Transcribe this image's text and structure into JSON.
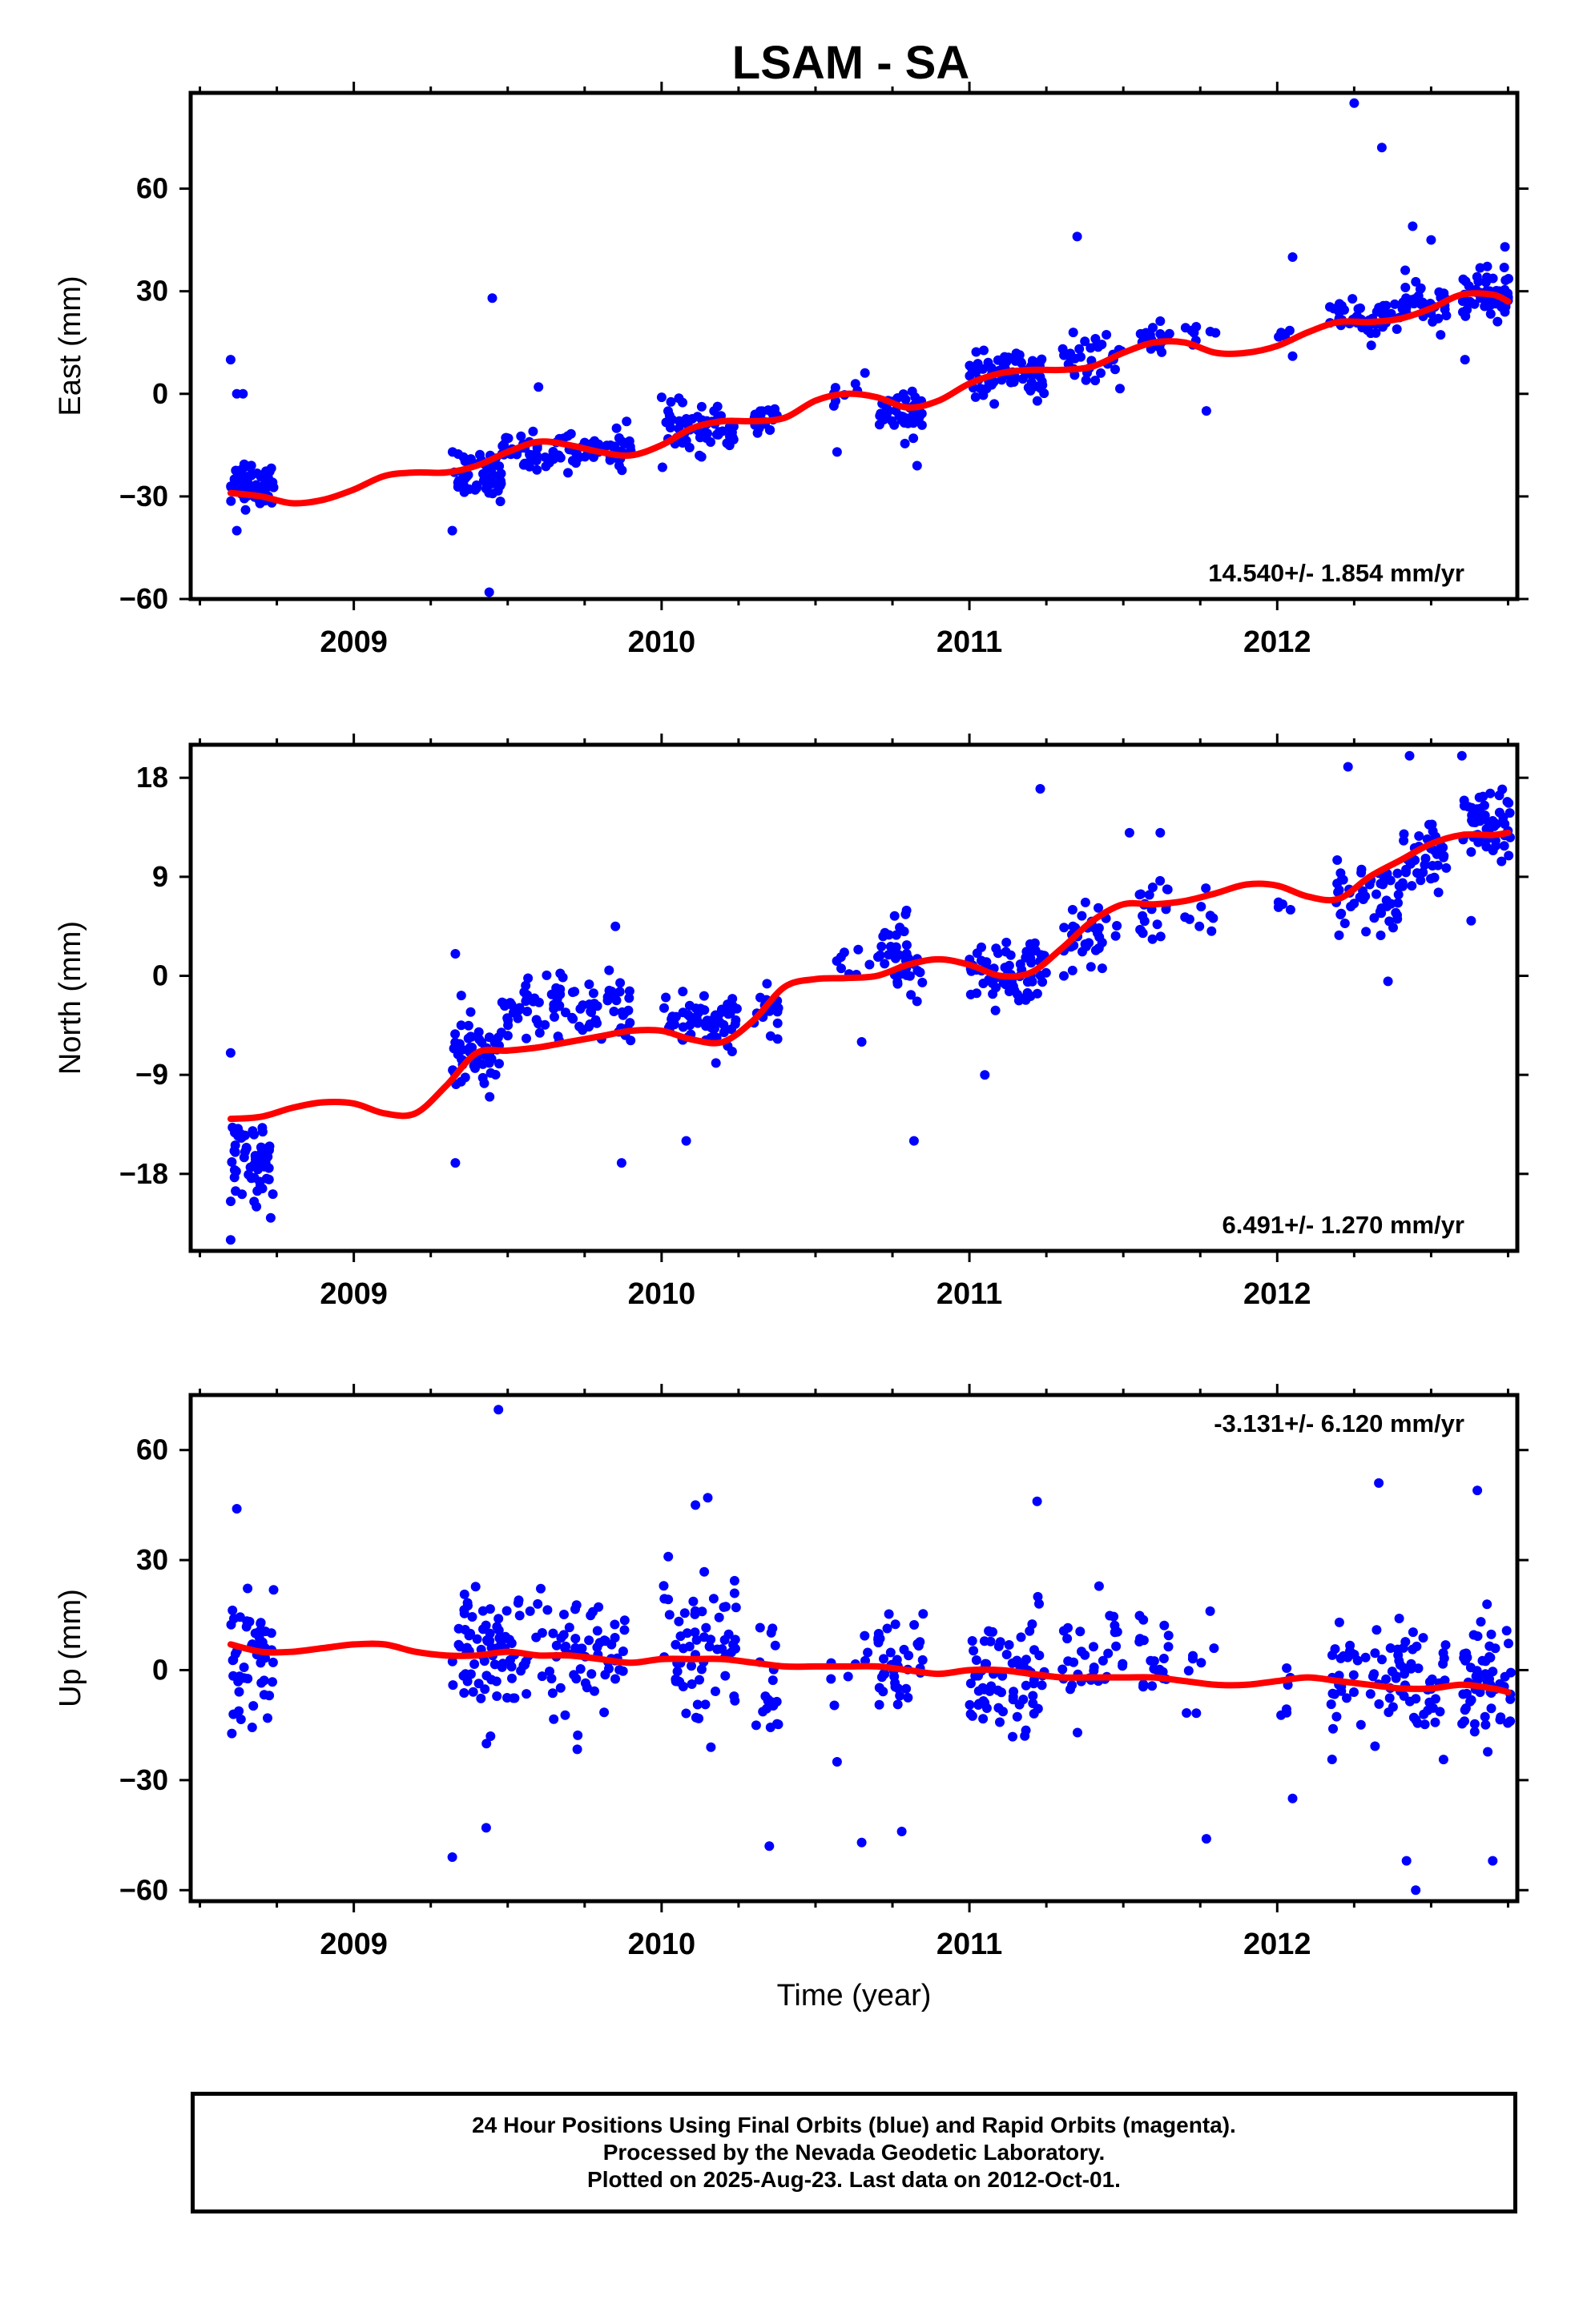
{
  "title": "LSAM - SA",
  "colors": {
    "points": "#0000ff",
    "fit": "#ff0000",
    "frame": "#000000"
  },
  "chart_data": [
    {
      "type": "scatter",
      "id": "east",
      "ylabel": "East (mm)",
      "xlabel": "",
      "xlim": [
        2008.47,
        2012.78
      ],
      "ylim": [
        -60,
        88
      ],
      "xticks": [
        2009,
        2010,
        2011,
        2012
      ],
      "xtick_labels": [
        "2009",
        "2010",
        "2011",
        "2012"
      ],
      "yticks": [
        -60,
        -30,
        0,
        30,
        60
      ],
      "ytick_labels": [
        "−60",
        "−30",
        "0",
        "30",
        "60"
      ],
      "rate_label": "14.540+/- 1.854 mm/yr",
      "rate_position": "bottom-right",
      "fit_curve": {
        "x": [
          2008.6,
          2008.7,
          2008.8,
          2008.9,
          2009.0,
          2009.1,
          2009.2,
          2009.3,
          2009.4,
          2009.5,
          2009.6,
          2009.7,
          2009.8,
          2009.9,
          2010.0,
          2010.1,
          2010.2,
          2010.3,
          2010.4,
          2010.5,
          2010.6,
          2010.7,
          2010.8,
          2010.9,
          2011.0,
          2011.1,
          2011.2,
          2011.3,
          2011.4,
          2011.5,
          2011.6,
          2011.7,
          2011.8,
          2011.9,
          2012.0,
          2012.1,
          2012.2,
          2012.3,
          2012.4,
          2012.5,
          2012.6,
          2012.7,
          2012.75
        ],
        "y": [
          -29,
          -30,
          -32,
          -31,
          -28,
          -24,
          -23,
          -23,
          -21,
          -17,
          -14,
          -15,
          -17,
          -18,
          -15,
          -10,
          -8,
          -8,
          -7,
          -2,
          0,
          -1,
          -4,
          -2,
          3,
          6,
          7,
          7,
          8,
          12,
          15,
          15,
          12,
          12,
          14,
          18,
          21,
          21,
          22,
          25,
          29,
          29,
          27
        ]
      },
      "point_clusters": [
        {
          "x": [
            2008.6,
            2008.74
          ],
          "y_center": -26,
          "spread": 6,
          "count": 60
        },
        {
          "x": [
            2009.32,
            2009.48
          ],
          "y_center": -24,
          "spread": 6,
          "count": 55
        },
        {
          "x": [
            2009.48,
            2009.72
          ],
          "y_center": -17,
          "spread": 5,
          "count": 50
        },
        {
          "x": [
            2009.72,
            2009.9
          ],
          "y_center": -16,
          "spread": 5,
          "count": 40
        },
        {
          "x": [
            2010.0,
            2010.25
          ],
          "y_center": -10,
          "spread": 6,
          "count": 65
        },
        {
          "x": [
            2010.3,
            2010.38
          ],
          "y_center": -8,
          "spread": 5,
          "count": 20
        },
        {
          "x": [
            2010.55,
            2010.68
          ],
          "y_center": 0,
          "spread": 4,
          "count": 8
        },
        {
          "x": [
            2010.7,
            2010.85
          ],
          "y_center": -5,
          "spread": 6,
          "count": 40
        },
        {
          "x": [
            2011.0,
            2011.25
          ],
          "y_center": 5,
          "spread": 6,
          "count": 75
        },
        {
          "x": [
            2011.3,
            2011.5
          ],
          "y_center": 10,
          "spread": 6,
          "count": 35
        },
        {
          "x": [
            2011.55,
            2011.65
          ],
          "y_center": 16,
          "spread": 5,
          "count": 20
        },
        {
          "x": [
            2011.7,
            2011.8
          ],
          "y_center": 18,
          "spread": 6,
          "count": 8
        },
        {
          "x": [
            2012.0,
            2012.05
          ],
          "y_center": 17,
          "spread": 5,
          "count": 4
        },
        {
          "x": [
            2012.17,
            2012.4
          ],
          "y_center": 22,
          "spread": 5,
          "count": 50
        },
        {
          "x": [
            2012.4,
            2012.55
          ],
          "y_center": 26,
          "spread": 6,
          "count": 40
        },
        {
          "x": [
            2012.6,
            2012.76
          ],
          "y_center": 29,
          "spread": 6,
          "count": 60
        }
      ],
      "outliers": [
        {
          "x": 2008.6,
          "y": 10
        },
        {
          "x": 2008.62,
          "y": 0
        },
        {
          "x": 2008.64,
          "y": 0
        },
        {
          "x": 2008.62,
          "y": -40
        },
        {
          "x": 2009.45,
          "y": 28
        },
        {
          "x": 2009.44,
          "y": -58
        },
        {
          "x": 2009.32,
          "y": -40
        },
        {
          "x": 2009.6,
          "y": 2
        },
        {
          "x": 2010.57,
          "y": -17
        },
        {
          "x": 2010.83,
          "y": -21
        },
        {
          "x": 2011.35,
          "y": 46
        },
        {
          "x": 2011.77,
          "y": -5
        },
        {
          "x": 2012.05,
          "y": 40
        },
        {
          "x": 2012.05,
          "y": 11
        },
        {
          "x": 2012.25,
          "y": 85
        },
        {
          "x": 2012.34,
          "y": 72
        },
        {
          "x": 2012.44,
          "y": 49
        },
        {
          "x": 2012.5,
          "y": 45
        },
        {
          "x": 2012.61,
          "y": 10
        },
        {
          "x": 2012.74,
          "y": 43
        }
      ]
    },
    {
      "type": "scatter",
      "id": "north",
      "ylabel": "North (mm)",
      "xlabel": "",
      "xlim": [
        2008.47,
        2012.78
      ],
      "ylim": [
        -25,
        21
      ],
      "xticks": [
        2009,
        2010,
        2011,
        2012
      ],
      "xtick_labels": [
        "2009",
        "2010",
        "2011",
        "2012"
      ],
      "yticks": [
        -18,
        -9,
        0,
        9,
        18
      ],
      "ytick_labels": [
        "−18",
        "−9",
        "0",
        "9",
        "18"
      ],
      "rate_label": "6.491+/- 1.270 mm/yr",
      "rate_position": "bottom-right",
      "fit_curve": {
        "x": [
          2008.6,
          2008.7,
          2008.8,
          2008.9,
          2009.0,
          2009.1,
          2009.2,
          2009.3,
          2009.4,
          2009.5,
          2009.6,
          2009.7,
          2009.8,
          2009.9,
          2010.0,
          2010.1,
          2010.2,
          2010.3,
          2010.4,
          2010.5,
          2010.6,
          2010.7,
          2010.8,
          2010.9,
          2011.0,
          2011.1,
          2011.2,
          2011.3,
          2011.4,
          2011.5,
          2011.6,
          2011.7,
          2011.8,
          2011.9,
          2012.0,
          2012.1,
          2012.2,
          2012.3,
          2012.4,
          2012.5,
          2012.6,
          2012.7,
          2012.75
        ],
        "y": [
          -13,
          -12.8,
          -12,
          -11.5,
          -11.6,
          -12.5,
          -12.5,
          -10,
          -7,
          -6.8,
          -6.5,
          -6,
          -5.5,
          -5,
          -5,
          -5.8,
          -6,
          -4,
          -1,
          -0.3,
          -0.2,
          0,
          1,
          1.5,
          1,
          0,
          0.3,
          2.5,
          5,
          6.5,
          6.5,
          6.8,
          7.5,
          8.3,
          8.2,
          7.2,
          7,
          9,
          10.5,
          12,
          12.8,
          12.8,
          13
        ]
      },
      "point_clusters": [
        {
          "x": [
            2008.6,
            2008.74
          ],
          "y_center": -17,
          "spread": 3.5,
          "count": 60
        },
        {
          "x": [
            2009.32,
            2009.48
          ],
          "y_center": -7,
          "spread": 3,
          "count": 55
        },
        {
          "x": [
            2009.48,
            2009.72
          ],
          "y_center": -3,
          "spread": 2.5,
          "count": 50
        },
        {
          "x": [
            2009.72,
            2009.9
          ],
          "y_center": -3,
          "spread": 2.5,
          "count": 40
        },
        {
          "x": [
            2010.0,
            2010.25
          ],
          "y_center": -4,
          "spread": 2.5,
          "count": 65
        },
        {
          "x": [
            2010.3,
            2010.38
          ],
          "y_center": -3,
          "spread": 2.5,
          "count": 20
        },
        {
          "x": [
            2010.55,
            2010.68
          ],
          "y_center": 1,
          "spread": 2.5,
          "count": 8
        },
        {
          "x": [
            2010.7,
            2010.85
          ],
          "y_center": 2,
          "spread": 3,
          "count": 40
        },
        {
          "x": [
            2011.0,
            2011.25
          ],
          "y_center": 0,
          "spread": 3,
          "count": 75
        },
        {
          "x": [
            2011.3,
            2011.5
          ],
          "y_center": 3,
          "spread": 3,
          "count": 35
        },
        {
          "x": [
            2011.55,
            2011.65
          ],
          "y_center": 6,
          "spread": 3,
          "count": 20
        },
        {
          "x": [
            2011.7,
            2011.8
          ],
          "y_center": 6,
          "spread": 3,
          "count": 8
        },
        {
          "x": [
            2012.0,
            2012.05
          ],
          "y_center": 7,
          "spread": 3,
          "count": 4
        },
        {
          "x": [
            2012.17,
            2012.4
          ],
          "y_center": 7,
          "spread": 3,
          "count": 50
        },
        {
          "x": [
            2012.4,
            2012.55
          ],
          "y_center": 10,
          "spread": 3,
          "count": 40
        },
        {
          "x": [
            2012.6,
            2012.76
          ],
          "y_center": 14,
          "spread": 2.5,
          "count": 60
        }
      ],
      "outliers": [
        {
          "x": 2008.6,
          "y": -7
        },
        {
          "x": 2008.6,
          "y": -24
        },
        {
          "x": 2008.73,
          "y": -22
        },
        {
          "x": 2009.33,
          "y": 2
        },
        {
          "x": 2009.33,
          "y": -17
        },
        {
          "x": 2009.87,
          "y": -17
        },
        {
          "x": 2009.85,
          "y": 4.5
        },
        {
          "x": 2010.08,
          "y": -15
        },
        {
          "x": 2010.82,
          "y": -15
        },
        {
          "x": 2010.65,
          "y": -6
        },
        {
          "x": 2011.05,
          "y": -9
        },
        {
          "x": 2011.23,
          "y": 17
        },
        {
          "x": 2011.52,
          "y": 13
        },
        {
          "x": 2011.62,
          "y": 13
        },
        {
          "x": 2012.23,
          "y": 19
        },
        {
          "x": 2012.43,
          "y": 20
        },
        {
          "x": 2012.6,
          "y": 20
        },
        {
          "x": 2012.63,
          "y": 5
        },
        {
          "x": 2012.36,
          "y": -0.5
        }
      ]
    },
    {
      "type": "scatter",
      "id": "up",
      "ylabel": "Up (mm)",
      "xlabel": "Time (year)",
      "xlim": [
        2008.47,
        2012.78
      ],
      "ylim": [
        -63,
        75
      ],
      "xticks": [
        2009,
        2010,
        2011,
        2012
      ],
      "xtick_labels": [
        "2009",
        "2010",
        "2011",
        "2012"
      ],
      "yticks": [
        -60,
        -30,
        0,
        30,
        60
      ],
      "ytick_labels": [
        "−60",
        "−30",
        "0",
        "30",
        "60"
      ],
      "rate_label": "-3.131+/- 6.120 mm/yr",
      "rate_position": "top-right",
      "fit_curve": {
        "x": [
          2008.6,
          2008.7,
          2008.8,
          2008.9,
          2009.0,
          2009.1,
          2009.2,
          2009.3,
          2009.4,
          2009.5,
          2009.6,
          2009.7,
          2009.8,
          2009.9,
          2010.0,
          2010.1,
          2010.2,
          2010.3,
          2010.4,
          2010.5,
          2010.6,
          2010.7,
          2010.8,
          2010.9,
          2011.0,
          2011.1,
          2011.2,
          2011.3,
          2011.4,
          2011.5,
          2011.6,
          2011.7,
          2011.8,
          2011.9,
          2012.0,
          2012.1,
          2012.2,
          2012.3,
          2012.4,
          2012.5,
          2012.6,
          2012.7,
          2012.75
        ],
        "y": [
          7,
          5,
          5,
          6,
          7,
          7,
          5,
          4,
          4,
          5,
          4,
          4,
          3,
          2,
          3,
          3,
          3,
          2,
          1,
          1,
          1,
          1,
          0,
          -1,
          0,
          0,
          -1,
          -2,
          -2,
          -2,
          -2,
          -3,
          -4,
          -4,
          -3,
          -2,
          -3,
          -4,
          -5,
          -5,
          -4,
          -5,
          -6
        ]
      },
      "point_clusters": [
        {
          "x": [
            2008.6,
            2008.74
          ],
          "y_center": 3,
          "spread": 16,
          "count": 55
        },
        {
          "x": [
            2009.32,
            2009.48
          ],
          "y_center": 3,
          "spread": 16,
          "count": 55
        },
        {
          "x": [
            2009.48,
            2009.72
          ],
          "y_center": 5,
          "spread": 15,
          "count": 50
        },
        {
          "x": [
            2009.72,
            2009.9
          ],
          "y_center": 4,
          "spread": 14,
          "count": 40
        },
        {
          "x": [
            2010.0,
            2010.25
          ],
          "y_center": 8,
          "spread": 18,
          "count": 65
        },
        {
          "x": [
            2010.3,
            2010.38
          ],
          "y_center": -5,
          "spread": 16,
          "count": 20
        },
        {
          "x": [
            2010.55,
            2010.68
          ],
          "y_center": 0,
          "spread": 14,
          "count": 8
        },
        {
          "x": [
            2010.7,
            2010.85
          ],
          "y_center": 0,
          "spread": 14,
          "count": 40
        },
        {
          "x": [
            2011.0,
            2011.25
          ],
          "y_center": 0,
          "spread": 14,
          "count": 75
        },
        {
          "x": [
            2011.3,
            2011.5
          ],
          "y_center": 2,
          "spread": 14,
          "count": 35
        },
        {
          "x": [
            2011.55,
            2011.65
          ],
          "y_center": 0,
          "spread": 15,
          "count": 20
        },
        {
          "x": [
            2011.7,
            2011.8
          ],
          "y_center": -2,
          "spread": 15,
          "count": 8
        },
        {
          "x": [
            2012.0,
            2012.05
          ],
          "y_center": -10,
          "spread": 14,
          "count": 6
        },
        {
          "x": [
            2012.17,
            2012.4
          ],
          "y_center": -3,
          "spread": 16,
          "count": 50
        },
        {
          "x": [
            2012.4,
            2012.55
          ],
          "y_center": -4,
          "spread": 16,
          "count": 40
        },
        {
          "x": [
            2012.6,
            2012.76
          ],
          "y_center": -4,
          "spread": 16,
          "count": 60
        }
      ],
      "outliers": [
        {
          "x": 2008.62,
          "y": 44
        },
        {
          "x": 2009.47,
          "y": 71
        },
        {
          "x": 2009.32,
          "y": -51
        },
        {
          "x": 2009.43,
          "y": -43
        },
        {
          "x": 2010.15,
          "y": 47
        },
        {
          "x": 2010.11,
          "y": 45
        },
        {
          "x": 2010.35,
          "y": -48
        },
        {
          "x": 2010.57,
          "y": -25
        },
        {
          "x": 2010.65,
          "y": -47
        },
        {
          "x": 2010.78,
          "y": -44
        },
        {
          "x": 2011.22,
          "y": 46
        },
        {
          "x": 2011.77,
          "y": -46
        },
        {
          "x": 2012.33,
          "y": 51
        },
        {
          "x": 2012.42,
          "y": -52
        },
        {
          "x": 2012.45,
          "y": -60
        },
        {
          "x": 2012.65,
          "y": 49
        },
        {
          "x": 2012.7,
          "y": -52
        },
        {
          "x": 2012.05,
          "y": -35
        }
      ]
    }
  ],
  "caption": {
    "line1": "24 Hour Positions Using Final Orbits (blue) and Rapid Orbits (magenta).",
    "line2": "Processed by the Nevada Geodetic Laboratory.",
    "line3": "Plotted on 2025-Aug-23. Last data on 2012-Oct-01."
  }
}
